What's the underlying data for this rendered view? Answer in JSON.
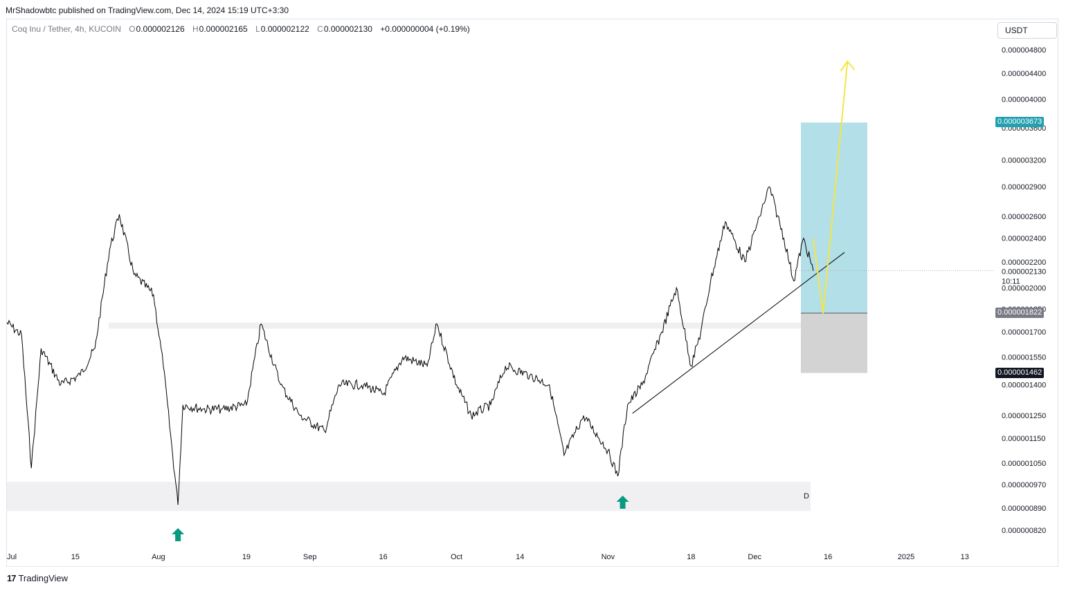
{
  "header": {
    "attribution": "MrShadowbtc published on TradingView.com, Dec 14, 2024 15:19 UTC+3:30"
  },
  "legend": {
    "symbol": "Coq Inu / Tether, 4h, KUCOIN",
    "open_label": "O",
    "open": "0.000002126",
    "high_label": "H",
    "high": "0.000002165",
    "low_label": "L",
    "low": "0.000002122",
    "close_label": "C",
    "close": "0.000002130",
    "change": "+0.000000004 (+0.19%)"
  },
  "currency_button": "USDT",
  "footer": {
    "logo_mark": "17",
    "logo_text": "TradingView"
  },
  "colors": {
    "candle": "#000000",
    "target_zone": "#b2dfe8",
    "stop_zone": "#d3d3d3",
    "support_zone": "#f0f0f3",
    "projection": "#f5e642",
    "arrow": "#089981",
    "target_tag": "#22a0b0",
    "entry_tag": "#787b86",
    "stop_tag": "#131722"
  },
  "chart_data": {
    "type": "candlestick",
    "timeframe": "4h",
    "price_axis_ticks": [
      "0.000004800",
      "0.000004400",
      "0.000004000",
      "0.000003600",
      "0.000003200",
      "0.000002900",
      "0.000002600",
      "0.000002400",
      "0.000002200",
      "0.000002000",
      "0.000001850",
      "0.000001700",
      "0.000001550",
      "0.000001400",
      "0.000001250",
      "0.000001150",
      "0.000001050",
      "0.000000970",
      "0.000000890",
      "0.000000820"
    ],
    "time_axis_ticks": [
      "Jul",
      "15",
      "Aug",
      "19",
      "Sep",
      "16",
      "Oct",
      "14",
      "Nov",
      "18",
      "Dec",
      "16",
      "2025",
      "13"
    ],
    "current_price": "0.000002130",
    "countdown": "10:11",
    "position": {
      "target": "0.000003673",
      "entry": "0.000001822",
      "stop": "0.000001462"
    },
    "zones": [
      {
        "name": "resistance-support",
        "low": 1.72e-06,
        "high": 1.76e-06
      },
      {
        "name": "demand",
        "low": 8.8e-07,
        "high": 9.8e-07,
        "label": "D"
      }
    ],
    "price_path": [
      [
        "2024-07-01",
        1.76e-06
      ],
      [
        "2024-07-04",
        1.68e-06
      ],
      [
        "2024-07-06",
        1.03e-06
      ],
      [
        "2024-07-08",
        1.6e-06
      ],
      [
        "2024-07-12",
        1.4e-06
      ],
      [
        "2024-07-16",
        1.45e-06
      ],
      [
        "2024-07-19",
        1.6e-06
      ],
      [
        "2024-07-22",
        2.3e-06
      ],
      [
        "2024-07-24",
        2.62e-06
      ],
      [
        "2024-07-27",
        2.1e-06
      ],
      [
        "2024-07-31",
        1.95e-06
      ],
      [
        "2024-08-02",
        1.5e-06
      ],
      [
        "2024-08-05",
        9e-07
      ],
      [
        "2024-08-06",
        1.3e-06
      ],
      [
        "2024-08-10",
        1.28e-06
      ],
      [
        "2024-08-14",
        1.28e-06
      ],
      [
        "2024-08-19",
        1.3e-06
      ],
      [
        "2024-08-22",
        1.75e-06
      ],
      [
        "2024-08-26",
        1.4e-06
      ],
      [
        "2024-08-30",
        1.25e-06
      ],
      [
        "2024-09-04",
        1.18e-06
      ],
      [
        "2024-09-07",
        1.4e-06
      ],
      [
        "2024-09-12",
        1.4e-06
      ],
      [
        "2024-09-16",
        1.35e-06
      ],
      [
        "2024-09-20",
        1.55e-06
      ],
      [
        "2024-09-25",
        1.5e-06
      ],
      [
        "2024-09-27",
        1.75e-06
      ],
      [
        "2024-10-01",
        1.4e-06
      ],
      [
        "2024-10-04",
        1.25e-06
      ],
      [
        "2024-10-08",
        1.3e-06
      ],
      [
        "2024-10-11",
        1.5e-06
      ],
      [
        "2024-10-16",
        1.45e-06
      ],
      [
        "2024-10-20",
        1.4e-06
      ],
      [
        "2024-10-23",
        1.08e-06
      ],
      [
        "2024-10-27",
        1.25e-06
      ],
      [
        "2024-11-01",
        1.1e-06
      ],
      [
        "2024-11-03",
        1e-06
      ],
      [
        "2024-11-05",
        1.3e-06
      ],
      [
        "2024-11-08",
        1.4e-06
      ],
      [
        "2024-11-12",
        1.7e-06
      ],
      [
        "2024-11-15",
        2e-06
      ],
      [
        "2024-11-18",
        1.5e-06
      ],
      [
        "2024-11-20",
        1.7e-06
      ],
      [
        "2024-11-22",
        2.05e-06
      ],
      [
        "2024-11-25",
        2.55e-06
      ],
      [
        "2024-11-29",
        2.2e-06
      ],
      [
        "2024-12-02",
        2.6e-06
      ],
      [
        "2024-12-04",
        2.9e-06
      ],
      [
        "2024-12-07",
        2.4e-06
      ],
      [
        "2024-12-09",
        2.05e-06
      ],
      [
        "2024-12-11",
        2.4e-06
      ],
      [
        "2024-12-13",
        2.13e-06
      ]
    ],
    "projection": [
      [
        "2024-12-13",
        2.4e-06
      ],
      [
        "2024-12-15",
        1.82e-06
      ],
      [
        "2024-12-20",
        4.6e-06
      ]
    ],
    "trendline": [
      [
        "2024-11-06",
        1.26e-06
      ],
      [
        "2024-12-16",
        2.21e-06
      ]
    ],
    "markers": [
      {
        "type": "up-arrow",
        "date": "2024-08-05"
      },
      {
        "type": "up-arrow",
        "date": "2024-11-04"
      }
    ]
  }
}
